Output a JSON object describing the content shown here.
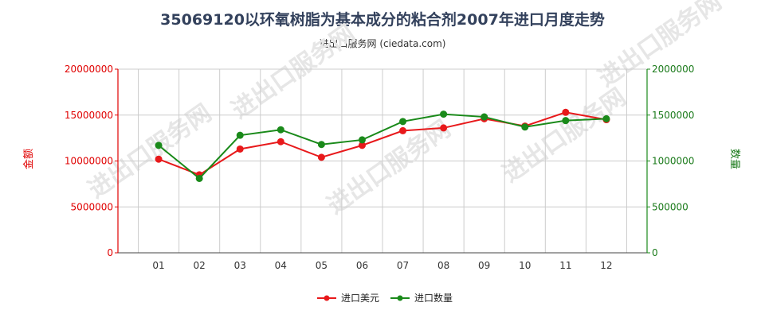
{
  "title": "35069120以环氧树脂为基本成分的粘合剂2007年进口月度走势",
  "subtitle": "进出口服务网 (ciedata.com)",
  "watermark": "进出口服务网",
  "colors": {
    "value": "#e8191b",
    "quantity": "#1a8a1a",
    "grid": "#cccccc"
  },
  "chart_data": {
    "type": "line",
    "categories": [
      "01",
      "02",
      "03",
      "04",
      "05",
      "06",
      "07",
      "08",
      "09",
      "10",
      "11",
      "12"
    ],
    "y_left": {
      "label": "金额",
      "ylim": [
        0,
        20000000
      ],
      "ticks": [
        "0",
        "5000000",
        "10000000",
        "15000000",
        "20000000"
      ]
    },
    "y_right": {
      "label": "数量",
      "ylim": [
        0,
        2000000
      ],
      "ticks": [
        "0",
        "500000",
        "1000000",
        "1500000",
        "2000000"
      ]
    },
    "series": [
      {
        "name": "进口美元",
        "axis": "left",
        "color": "#e8191b",
        "values": [
          10200000,
          8500000,
          11300000,
          12100000,
          10400000,
          11700000,
          13300000,
          13600000,
          14600000,
          13800000,
          15300000,
          14500000
        ]
      },
      {
        "name": "进口数量",
        "axis": "right",
        "color": "#1a8a1a",
        "values": [
          1170000,
          810000,
          1280000,
          1340000,
          1180000,
          1230000,
          1430000,
          1510000,
          1480000,
          1370000,
          1440000,
          1460000
        ]
      }
    ],
    "grid": true,
    "legend": "bottom-center"
  }
}
